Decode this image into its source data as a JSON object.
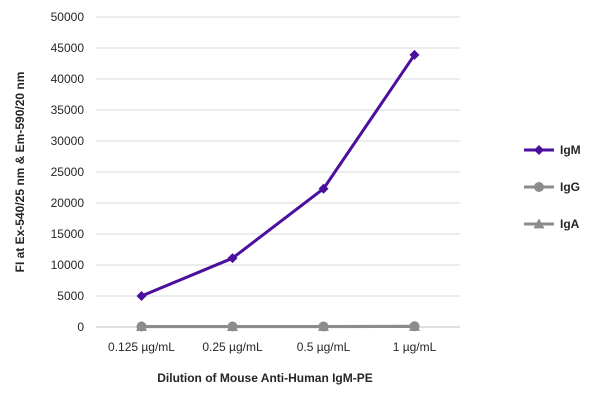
{
  "chart_data": {
    "type": "line",
    "categories": [
      "0.125 µg/mL",
      "0.25 µg/mL",
      "0.5 µg/mL",
      "1 µg/mL"
    ],
    "series": [
      {
        "name": "IgM",
        "values": [
          5000,
          11100,
          22300,
          43900
        ],
        "color": "#4B0E9E",
        "marker": "diamond"
      },
      {
        "name": "IgG",
        "values": [
          80,
          80,
          90,
          120
        ],
        "color": "#8C8C8C",
        "marker": "circle"
      },
      {
        "name": "IgA",
        "values": [
          60,
          60,
          70,
          80
        ],
        "color": "#8C8C8C",
        "marker": "triangle"
      }
    ],
    "xlabel": "Dilution of Mouse Anti-Human IgM-PE",
    "ylabel": "FI at Ex-540/25 nm & Em-590/20 nm",
    "ylim": [
      0,
      50000
    ],
    "yticks": [
      0,
      5000,
      10000,
      15000,
      20000,
      25000,
      30000,
      35000,
      40000,
      45000,
      50000
    ],
    "grid": true,
    "legend_position": "right"
  }
}
